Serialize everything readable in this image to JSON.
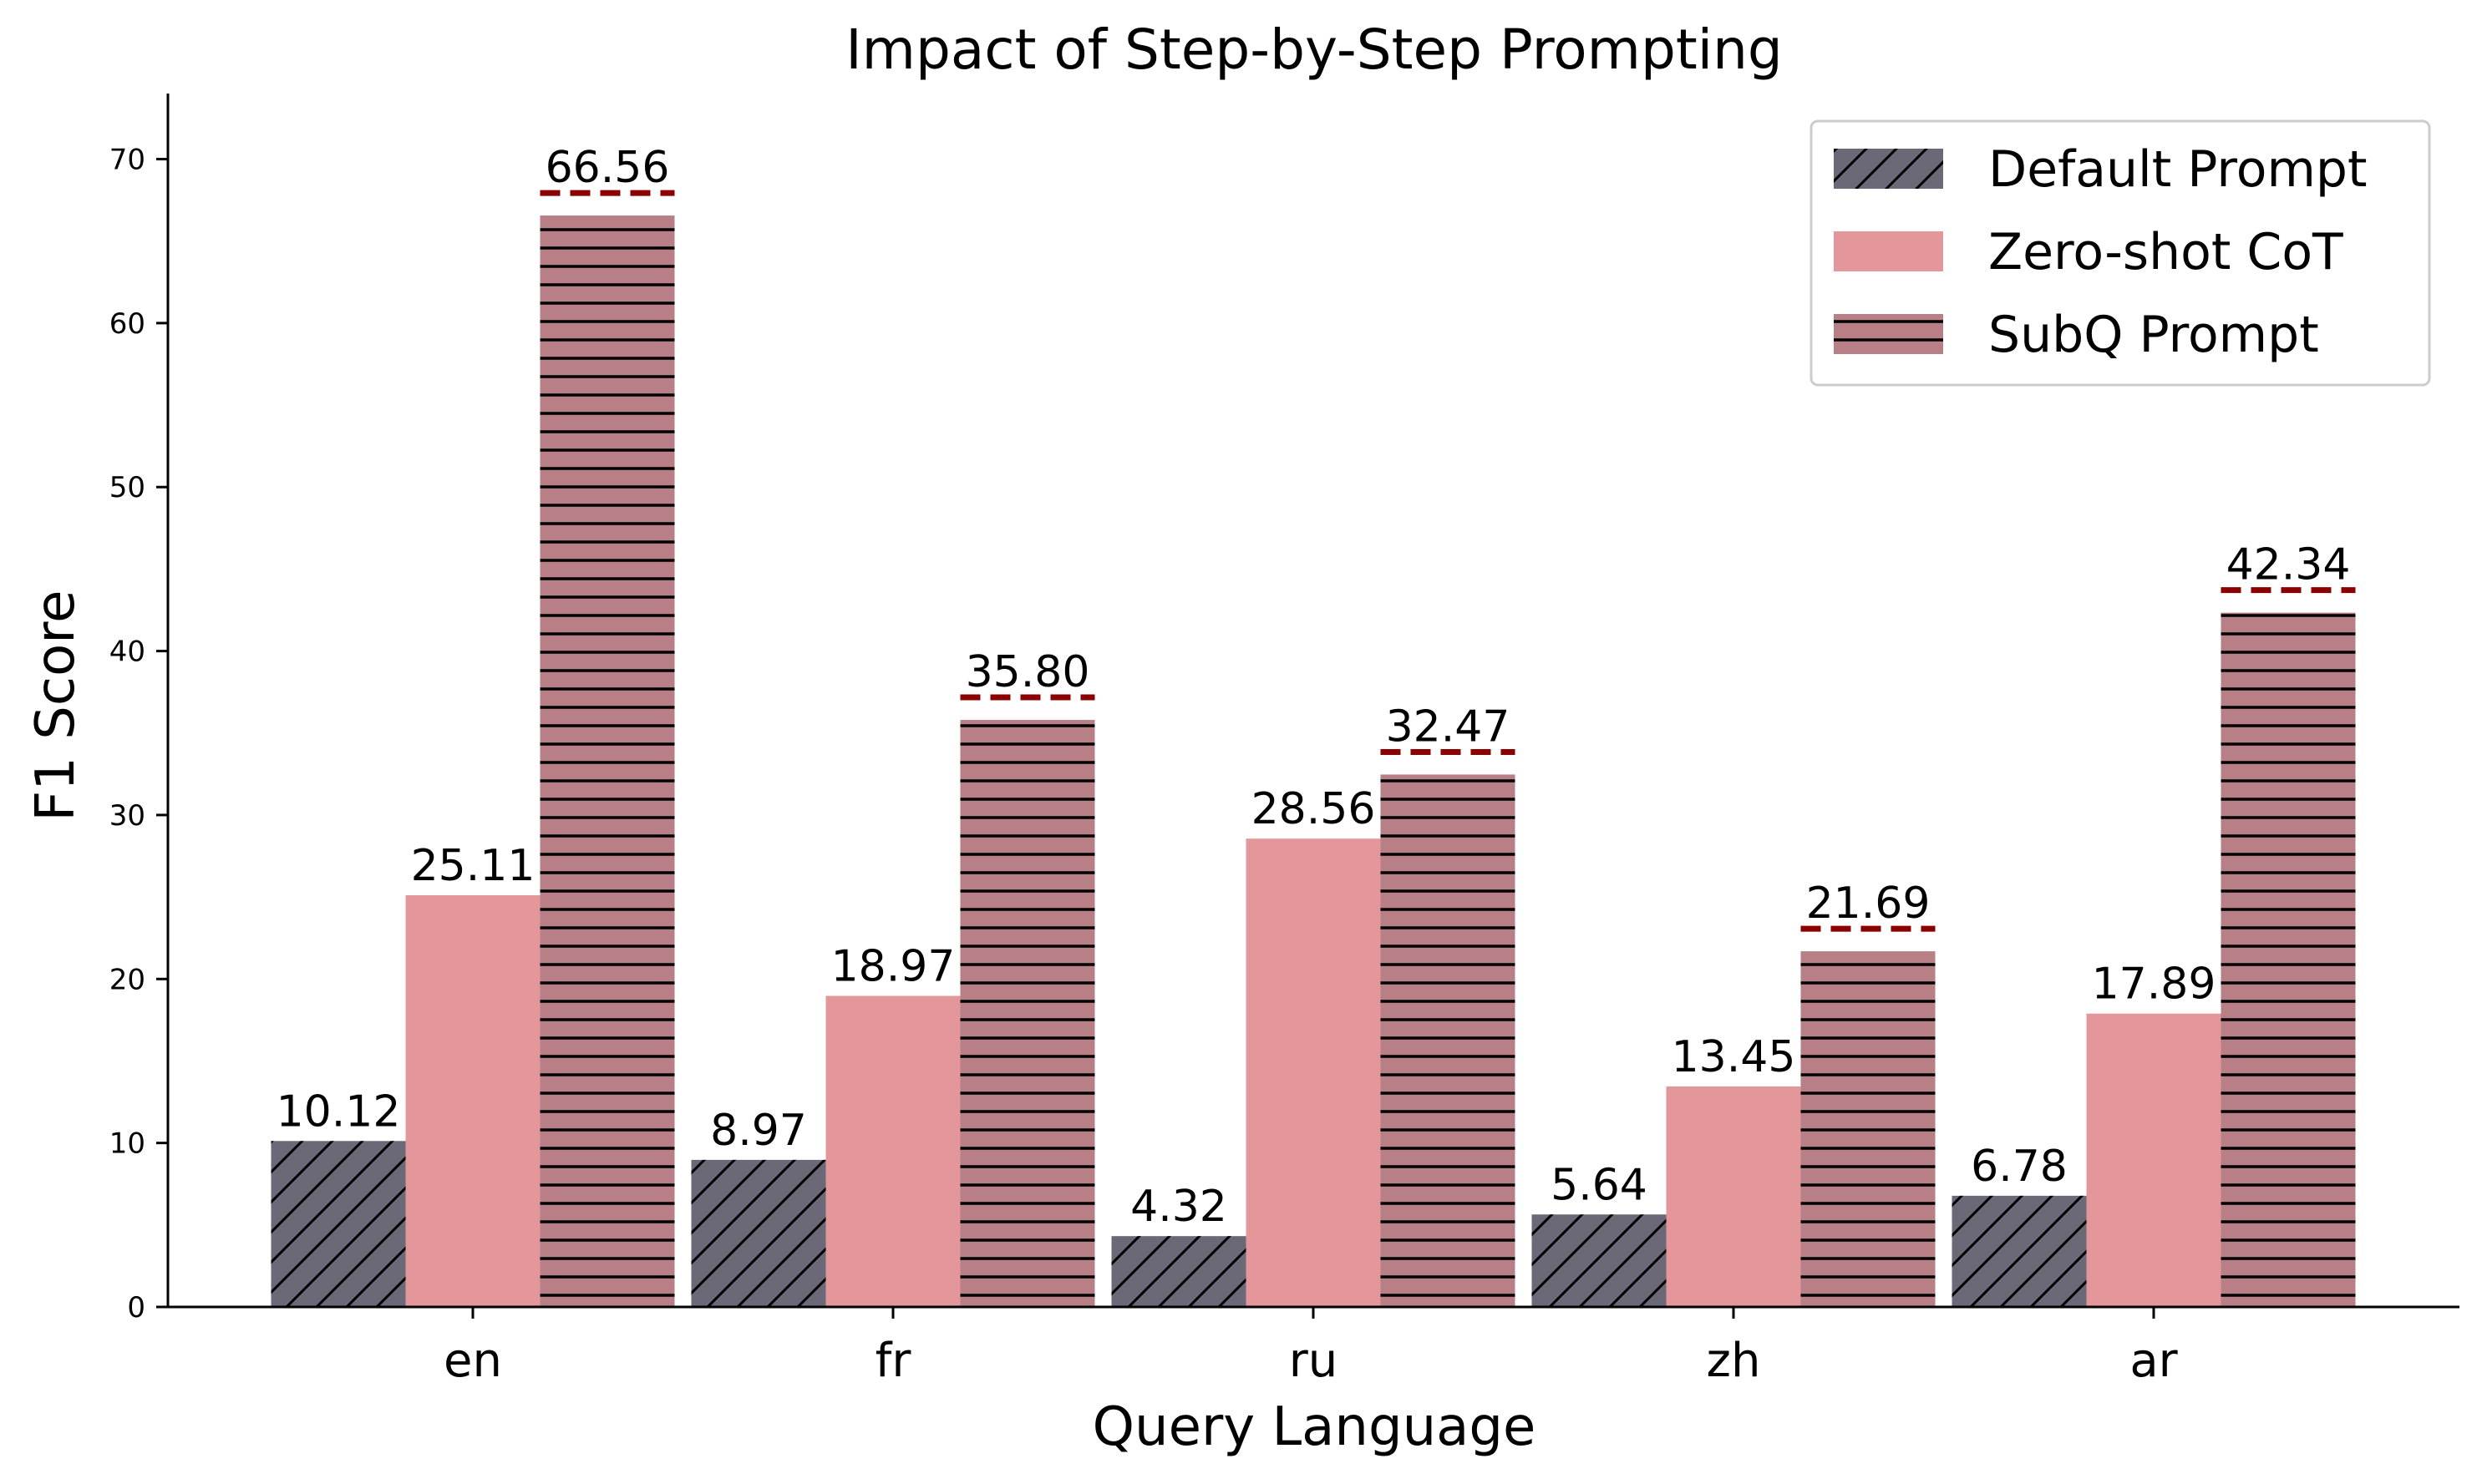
{
  "chart_data": {
    "type": "bar",
    "title": "Impact of Step-by-Step Prompting",
    "xlabel": "Query Language",
    "ylabel": "F1 Score",
    "categories": [
      "en",
      "fr",
      "ru",
      "zh",
      "ar"
    ],
    "ylim": [
      0,
      74
    ],
    "yticks": [
      0,
      10,
      20,
      30,
      40,
      50,
      60,
      70
    ],
    "grid": false,
    "legend_position": "top-right",
    "series": [
      {
        "name": "Default Prompt",
        "values": [
          10.12,
          8.97,
          4.32,
          5.64,
          6.78
        ],
        "labels": [
          "10.12",
          "8.97",
          "4.32",
          "5.64",
          "6.78"
        ],
        "color": "#6b6877",
        "hatch": "diagonal"
      },
      {
        "name": "Zero-shot CoT",
        "values": [
          25.11,
          18.97,
          28.56,
          13.45,
          17.89
        ],
        "labels": [
          "25.11",
          "18.97",
          "28.56",
          "13.45",
          "17.89"
        ],
        "color": "#e4979a",
        "hatch": "none"
      },
      {
        "name": "SubQ Prompt",
        "values": [
          66.56,
          35.8,
          32.47,
          21.69,
          42.34
        ],
        "labels": [
          "66.56",
          "35.80",
          "32.47",
          "21.69",
          "42.34"
        ],
        "color": "#b97f87",
        "hatch": "horizontal"
      }
    ],
    "highlight_line_color": "#8b0000"
  }
}
